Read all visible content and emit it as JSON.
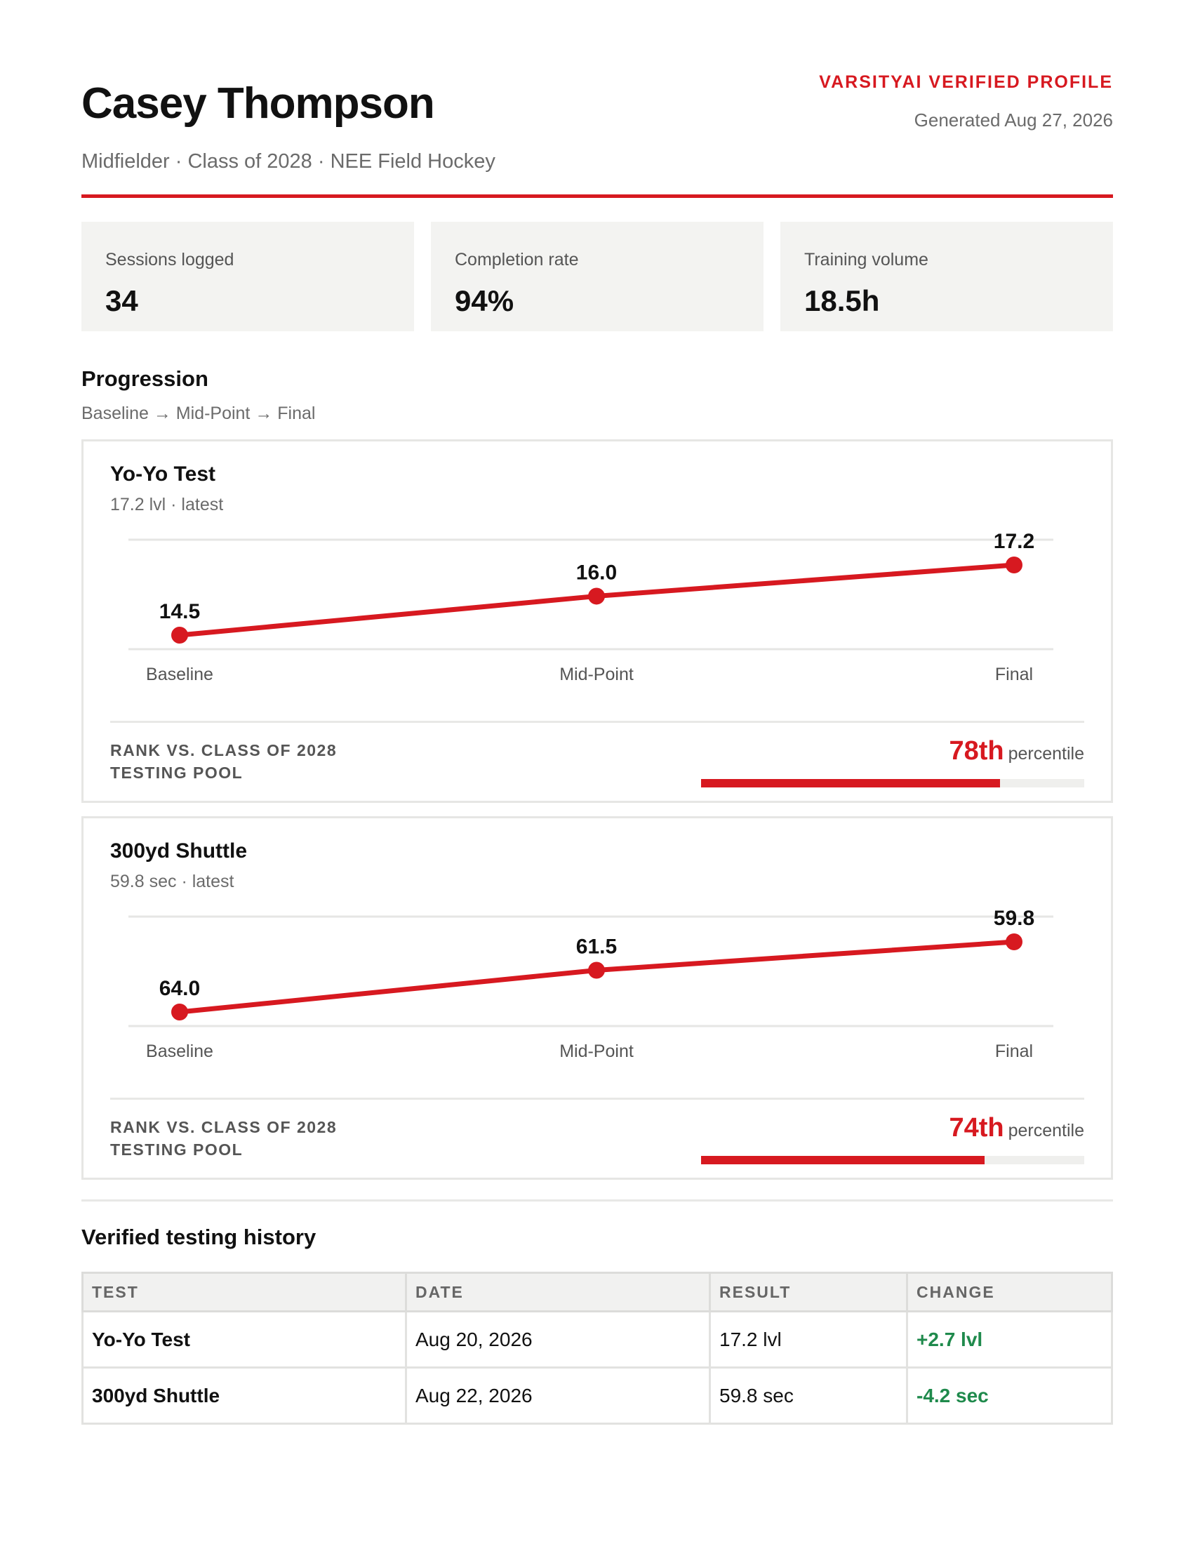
{
  "header": {
    "name": "Casey Thompson",
    "subtitle": "Midfielder · Class of 2028 · NEE Field Hockey",
    "brand": "VARSITYAI VERIFIED PROFILE",
    "generated": "Generated Aug 27, 2026"
  },
  "stats": [
    {
      "label": "Sessions logged",
      "value": "34"
    },
    {
      "label": "Completion rate",
      "value": "94%"
    },
    {
      "label": "Training volume",
      "value": "18.5h"
    }
  ],
  "progression": {
    "title": "Progression",
    "subtitle": "Baseline → Mid-Point → Final"
  },
  "cards": [
    {
      "title": "Yo-Yo Test",
      "subtitle": "17.2 lvl · latest",
      "rank_label_line1": "RANK VS. CLASS OF 2028",
      "rank_label_line2": "TESTING POOL",
      "rank_value": "78th",
      "rank_suffix": "percentile",
      "percentile": 78
    },
    {
      "title": "300yd Shuttle",
      "subtitle": "59.8 sec · latest",
      "rank_label_line1": "RANK VS. CLASS OF 2028",
      "rank_label_line2": "TESTING POOL",
      "rank_value": "74th",
      "rank_suffix": "percentile",
      "percentile": 74
    }
  ],
  "chart_data": [
    {
      "type": "line",
      "categories": [
        "Baseline",
        "Mid-Point",
        "Final"
      ],
      "values": [
        14.5,
        16.0,
        17.2
      ],
      "labels": [
        "14.5",
        "16.0",
        "17.2"
      ],
      "color": "#d71920"
    },
    {
      "type": "line",
      "categories": [
        "Baseline",
        "Mid-Point",
        "Final"
      ],
      "values": [
        64.0,
        61.5,
        59.8
      ],
      "labels": [
        "64.0",
        "61.5",
        "59.8"
      ],
      "inverted": true,
      "color": "#d71920"
    }
  ],
  "history": {
    "title": "Verified testing history",
    "columns": [
      "TEST",
      "DATE",
      "RESULT",
      "CHANGE"
    ],
    "rows": [
      {
        "test": "Yo-Yo Test",
        "date": "Aug 20, 2026",
        "result": "17.2 lvl",
        "change": "+2.7 lvl"
      },
      {
        "test": "300yd Shuttle",
        "date": "Aug 22, 2026",
        "result": "59.8 sec",
        "change": "-4.2 sec"
      }
    ]
  },
  "colors": {
    "accent": "#d71920",
    "positive": "#1f8a4c"
  }
}
